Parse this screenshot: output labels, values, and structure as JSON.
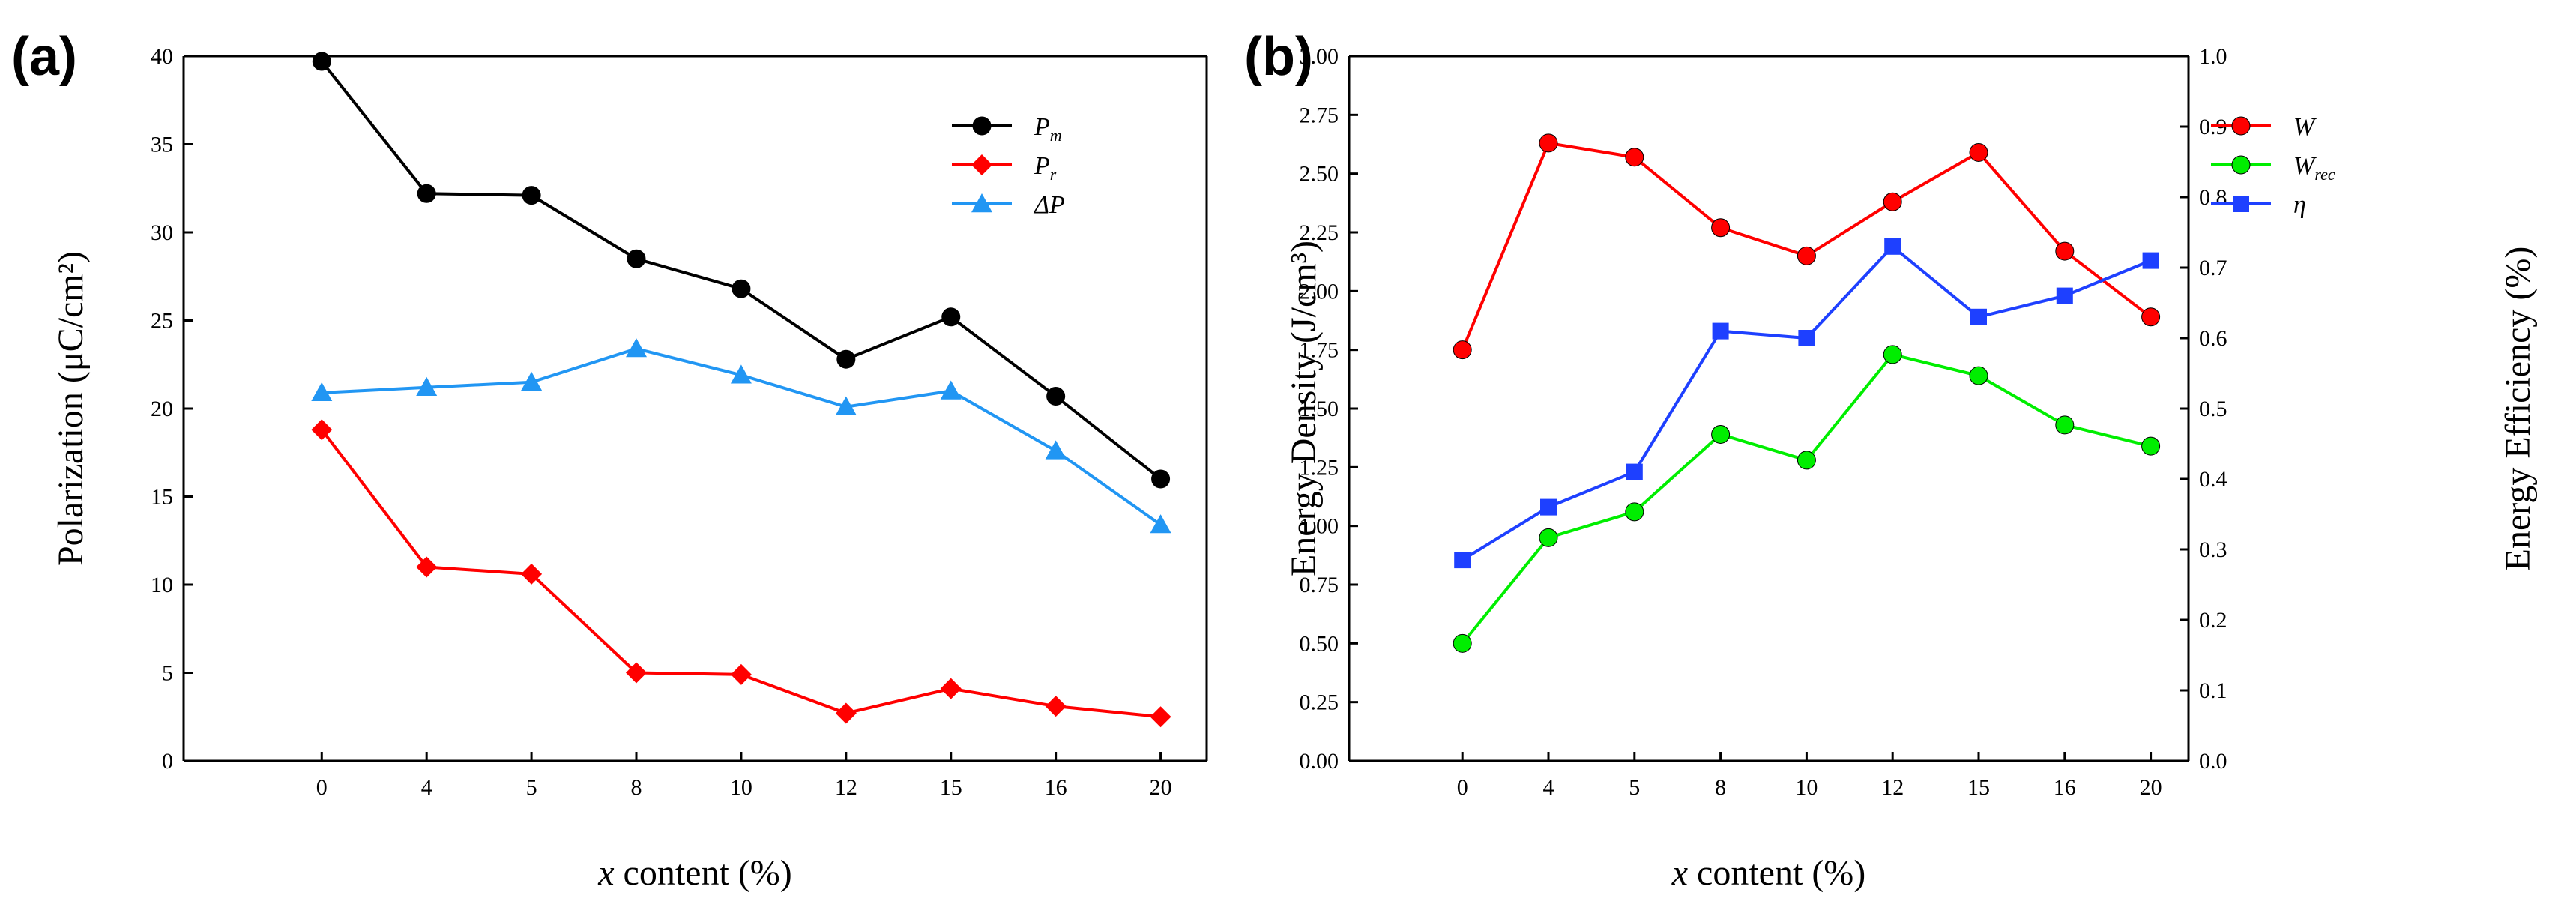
{
  "chart_data": [
    {
      "panel_label": "(a)",
      "type": "line",
      "categories": [
        "0",
        "4",
        "5",
        "8",
        "10",
        "12",
        "15",
        "16",
        "20"
      ],
      "xlabel_italic": "x",
      "xlabel_rest": " content (%)",
      "ylabel": "Polarization (μC/cm²)",
      "ylim": [
        0,
        40
      ],
      "yticks": [
        "0",
        "5",
        "10",
        "15",
        "20",
        "25",
        "30",
        "35",
        "40"
      ],
      "legend_position": "top-right",
      "series": [
        {
          "name": "P",
          "sub": "m",
          "color": "#000000",
          "marker": "circle",
          "values": [
            39.7,
            32.2,
            32.1,
            28.5,
            26.8,
            22.8,
            25.2,
            20.7,
            16.0
          ]
        },
        {
          "name": "P",
          "sub": "r",
          "color": "#ff0000",
          "marker": "diamond",
          "values": [
            18.8,
            11.0,
            10.6,
            5.0,
            4.9,
            2.7,
            4.1,
            3.1,
            2.5
          ]
        },
        {
          "name": "ΔP",
          "sub": "",
          "color": "#2196f3",
          "marker": "triangle",
          "values": [
            20.9,
            21.2,
            21.5,
            23.4,
            21.9,
            20.1,
            21.0,
            17.6,
            13.4
          ]
        }
      ]
    },
    {
      "panel_label": "(b)",
      "type": "line",
      "categories": [
        "0",
        "4",
        "5",
        "8",
        "10",
        "12",
        "15",
        "16",
        "20"
      ],
      "xlabel_italic": "x",
      "xlabel_rest": " content (%)",
      "ylabel": "Energy Density (J/cm³)",
      "ylim": [
        0,
        3
      ],
      "yticks": [
        "0.00",
        "0.25",
        "0.50",
        "0.75",
        "1.00",
        "1.25",
        "1.50",
        "1.75",
        "2.00",
        "2.25",
        "2.50",
        "2.75",
        "3.00"
      ],
      "y2label": "Energy Efficiency (%)",
      "y2lim": [
        0,
        1
      ],
      "y2ticks": [
        "0.0",
        "0.1",
        "0.2",
        "0.3",
        "0.4",
        "0.5",
        "0.6",
        "0.7",
        "0.8",
        "0.9",
        "1.0"
      ],
      "legend_position": "top-right",
      "series": [
        {
          "name": "W",
          "sub": "",
          "color": "#ff0000",
          "marker": "circle",
          "axis": "left",
          "values": [
            1.75,
            2.63,
            2.57,
            2.27,
            2.15,
            2.38,
            2.59,
            2.17,
            1.89
          ]
        },
        {
          "name": "W",
          "sub": "rec",
          "color": "#00ee00",
          "marker": "circle",
          "axis": "left",
          "values": [
            0.5,
            0.95,
            1.06,
            1.39,
            1.28,
            1.73,
            1.64,
            1.43,
            1.34
          ]
        },
        {
          "name": "η",
          "sub": "",
          "color": "#1e40ff",
          "marker": "square",
          "axis": "right",
          "values": [
            0.285,
            0.36,
            0.41,
            0.61,
            0.6,
            0.73,
            0.63,
            0.66,
            0.71
          ]
        }
      ]
    }
  ]
}
